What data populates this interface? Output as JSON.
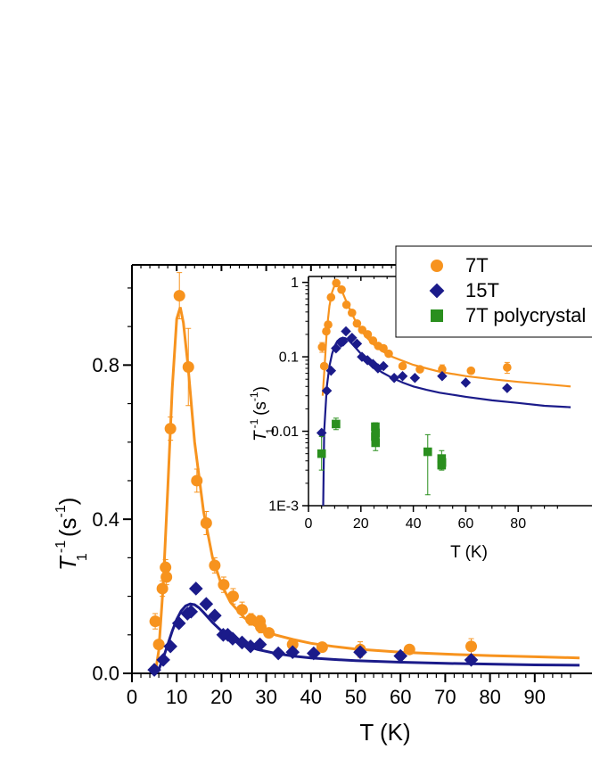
{
  "chart_data": [
    {
      "type": "scatter",
      "title": "",
      "xlabel": "T (K)",
      "ylabel": {
        "main": "T",
        "sub": "1",
        "sup": "-1",
        "unit": "(s",
        "unit_sup": "-1",
        "unit_close": ")"
      },
      "xlim": [
        0,
        100
      ],
      "ylim": [
        0,
        1.06
      ],
      "xticks": [
        0,
        10,
        20,
        30,
        40,
        50,
        60,
        70,
        80,
        90
      ],
      "xtick_labels": [
        "0",
        "10",
        "20",
        "30",
        "40",
        "50",
        "60",
        "70",
        "80",
        "90"
      ],
      "yticks": [
        0,
        0.4,
        0.8
      ],
      "ytick_labels": [
        "0.0",
        "0.4",
        "0.8"
      ],
      "grid": false,
      "colors": {
        "7T": "#f7931e",
        "15T": "#1b1b8a",
        "poly": "#2a8f1e"
      },
      "series": [
        {
          "name": "7T",
          "marker": "circle",
          "points": [
            {
              "x": 5.2,
              "y": 0.135,
              "err": 0.02
            },
            {
              "x": 6.0,
              "y": 0.075,
              "err": 0.01
            },
            {
              "x": 6.8,
              "y": 0.22,
              "err": 0.02
            },
            {
              "x": 7.5,
              "y": 0.275,
              "err": 0.02
            },
            {
              "x": 7.7,
              "y": 0.25,
              "err": 0.02
            },
            {
              "x": 8.6,
              "y": 0.635,
              "err": 0.03
            },
            {
              "x": 10.6,
              "y": 0.98,
              "err": 0.06
            },
            {
              "x": 12.6,
              "y": 0.795,
              "err": 0.1
            },
            {
              "x": 14.5,
              "y": 0.5,
              "err": 0.03
            },
            {
              "x": 16.6,
              "y": 0.39,
              "err": 0.03
            },
            {
              "x": 18.5,
              "y": 0.28,
              "err": 0.02
            },
            {
              "x": 20.5,
              "y": 0.23,
              "err": 0.02
            },
            {
              "x": 22.6,
              "y": 0.2,
              "err": 0.02
            },
            {
              "x": 24.6,
              "y": 0.165,
              "err": 0.02
            },
            {
              "x": 26.6,
              "y": 0.14,
              "err": 0.015
            },
            {
              "x": 28.6,
              "y": 0.135,
              "err": 0.015
            },
            {
              "x": 28.8,
              "y": 0.12,
              "err": 0.015
            },
            {
              "x": 30.6,
              "y": 0.105,
              "err": 0.01
            },
            {
              "x": 35.9,
              "y": 0.075,
              "err": 0.01
            },
            {
              "x": 42.5,
              "y": 0.068,
              "err": 0.01
            },
            {
              "x": 51.0,
              "y": 0.062,
              "err": 0.02
            },
            {
              "x": 62.0,
              "y": 0.062,
              "err": 0.01
            },
            {
              "x": 75.8,
              "y": 0.07,
              "err": 0.02
            }
          ],
          "fit": [
            [
              5.2,
              0.0
            ],
            [
              6,
              0.06
            ],
            [
              7,
              0.23
            ],
            [
              8,
              0.48
            ],
            [
              9,
              0.74
            ],
            [
              10,
              0.92
            ],
            [
              10.8,
              0.95
            ],
            [
              11.5,
              0.91
            ],
            [
              12.5,
              0.8
            ],
            [
              14,
              0.6
            ],
            [
              16,
              0.42
            ],
            [
              18,
              0.3
            ],
            [
              20,
              0.23
            ],
            [
              22,
              0.185
            ],
            [
              25,
              0.145
            ],
            [
              28,
              0.12
            ],
            [
              32,
              0.1
            ],
            [
              36,
              0.088
            ],
            [
              40,
              0.078
            ],
            [
              45,
              0.07
            ],
            [
              50,
              0.063
            ],
            [
              60,
              0.055
            ],
            [
              70,
              0.05
            ],
            [
              80,
              0.046
            ],
            [
              90,
              0.043
            ],
            [
              100,
              0.04
            ]
          ]
        },
        {
          "name": "15T",
          "marker": "diamond",
          "points": [
            {
              "x": 5.0,
              "y": 0.009
            },
            {
              "x": 7.0,
              "y": 0.035
            },
            {
              "x": 8.6,
              "y": 0.07
            },
            {
              "x": 10.5,
              "y": 0.13
            },
            {
              "x": 12.4,
              "y": 0.155
            },
            {
              "x": 13.2,
              "y": 0.16
            },
            {
              "x": 14.3,
              "y": 0.22
            },
            {
              "x": 16.6,
              "y": 0.18
            },
            {
              "x": 18.5,
              "y": 0.15
            },
            {
              "x": 20.4,
              "y": 0.1
            },
            {
              "x": 21.4,
              "y": 0.1
            },
            {
              "x": 22.5,
              "y": 0.09
            },
            {
              "x": 24.6,
              "y": 0.08
            },
            {
              "x": 26.5,
              "y": 0.07
            },
            {
              "x": 28.6,
              "y": 0.075
            },
            {
              "x": 32.7,
              "y": 0.052
            },
            {
              "x": 35.9,
              "y": 0.055
            },
            {
              "x": 40.6,
              "y": 0.052
            },
            {
              "x": 51.0,
              "y": 0.055
            },
            {
              "x": 60.0,
              "y": 0.045
            },
            {
              "x": 75.8,
              "y": 0.035
            }
          ],
          "fit": [
            [
              5.3,
              0.0
            ],
            [
              6,
              0.01
            ],
            [
              7,
              0.04
            ],
            [
              8,
              0.075
            ],
            [
              9,
              0.11
            ],
            [
              10,
              0.14
            ],
            [
              11,
              0.162
            ],
            [
              12,
              0.175
            ],
            [
              13,
              0.18
            ],
            [
              14,
              0.178
            ],
            [
              15,
              0.17
            ],
            [
              16,
              0.158
            ],
            [
              18,
              0.132
            ],
            [
              20,
              0.11
            ],
            [
              22,
              0.092
            ],
            [
              25,
              0.074
            ],
            [
              28,
              0.062
            ],
            [
              32,
              0.052
            ],
            [
              36,
              0.045
            ],
            [
              40,
              0.04
            ],
            [
              45,
              0.036
            ],
            [
              50,
              0.033
            ],
            [
              60,
              0.029
            ],
            [
              70,
              0.026
            ],
            [
              80,
              0.024
            ],
            [
              90,
              0.022
            ],
            [
              100,
              0.021
            ]
          ]
        }
      ]
    },
    {
      "type": "scatter",
      "title": "",
      "xlabel": "T (K)",
      "ylabel": {
        "main": "T",
        "sub": "1",
        "sup": "-1",
        "unit": "(s",
        "unit_sup": "-1",
        "unit_close": ")"
      },
      "yscale": "log",
      "xlim": [
        0,
        100
      ],
      "ylim": [
        0.001,
        1.2
      ],
      "xticks": [
        0,
        20,
        40,
        60,
        80
      ],
      "xtick_labels": [
        "0",
        "20",
        "40",
        "60",
        "80"
      ],
      "yticks": [
        0.001,
        0.01,
        0.1,
        1
      ],
      "ytick_labels": [
        "1E-3",
        "0.01",
        "0.1",
        "1"
      ],
      "legend": {
        "placement": "top-right",
        "entries": [
          {
            "label": "7T",
            "marker": "circle",
            "color": "#f7931e"
          },
          {
            "label": "15T",
            "marker": "diamond",
            "color": "#1b1b8a"
          },
          {
            "label": "7T polycrystal",
            "marker": "square",
            "color": "#2a8f1e"
          }
        ]
      },
      "series": [
        {
          "name": "7T",
          "marker": "circle",
          "points": [
            {
              "x": 5.2,
              "y": 0.135,
              "err": 0.02
            },
            {
              "x": 6.0,
              "y": 0.075
            },
            {
              "x": 6.8,
              "y": 0.22
            },
            {
              "x": 7.5,
              "y": 0.27
            },
            {
              "x": 8.6,
              "y": 0.63
            },
            {
              "x": 10.6,
              "y": 0.98
            },
            {
              "x": 12.6,
              "y": 0.8
            },
            {
              "x": 14.5,
              "y": 0.5
            },
            {
              "x": 16.6,
              "y": 0.39
            },
            {
              "x": 18.5,
              "y": 0.28
            },
            {
              "x": 20.5,
              "y": 0.23
            },
            {
              "x": 22.6,
              "y": 0.2
            },
            {
              "x": 24.6,
              "y": 0.165
            },
            {
              "x": 26.6,
              "y": 0.14
            },
            {
              "x": 28.6,
              "y": 0.13
            },
            {
              "x": 30.6,
              "y": 0.11
            },
            {
              "x": 35.9,
              "y": 0.075
            },
            {
              "x": 42.5,
              "y": 0.068
            },
            {
              "x": 51.0,
              "y": 0.068,
              "err": 0.01
            },
            {
              "x": 62.0,
              "y": 0.065
            },
            {
              "x": 75.8,
              "y": 0.072,
              "err": 0.012
            }
          ],
          "fit": [
            [
              5.4,
              0.03
            ],
            [
              6,
              0.06
            ],
            [
              7,
              0.23
            ],
            [
              8,
              0.48
            ],
            [
              9,
              0.74
            ],
            [
              10,
              0.92
            ],
            [
              10.8,
              0.95
            ],
            [
              11.5,
              0.91
            ],
            [
              12.5,
              0.8
            ],
            [
              14,
              0.6
            ],
            [
              16,
              0.42
            ],
            [
              18,
              0.3
            ],
            [
              20,
              0.23
            ],
            [
              22,
              0.185
            ],
            [
              25,
              0.145
            ],
            [
              28,
              0.12
            ],
            [
              32,
              0.1
            ],
            [
              36,
              0.088
            ],
            [
              40,
              0.078
            ],
            [
              45,
              0.07
            ],
            [
              50,
              0.063
            ],
            [
              60,
              0.055
            ],
            [
              70,
              0.05
            ],
            [
              80,
              0.046
            ],
            [
              90,
              0.043
            ],
            [
              100,
              0.04
            ]
          ]
        },
        {
          "name": "15T",
          "marker": "diamond",
          "points": [
            {
              "x": 5.0,
              "y": 0.0095
            },
            {
              "x": 7.0,
              "y": 0.035
            },
            {
              "x": 8.6,
              "y": 0.065
            },
            {
              "x": 10.5,
              "y": 0.13
            },
            {
              "x": 12.4,
              "y": 0.155
            },
            {
              "x": 13.2,
              "y": 0.16
            },
            {
              "x": 14.3,
              "y": 0.22
            },
            {
              "x": 16.6,
              "y": 0.18
            },
            {
              "x": 18.5,
              "y": 0.15
            },
            {
              "x": 20.4,
              "y": 0.1
            },
            {
              "x": 22.5,
              "y": 0.09
            },
            {
              "x": 24.6,
              "y": 0.08
            },
            {
              "x": 26.5,
              "y": 0.07
            },
            {
              "x": 28.6,
              "y": 0.075
            },
            {
              "x": 32.7,
              "y": 0.052
            },
            {
              "x": 35.9,
              "y": 0.055
            },
            {
              "x": 40.6,
              "y": 0.052
            },
            {
              "x": 51.0,
              "y": 0.055
            },
            {
              "x": 60.0,
              "y": 0.045
            },
            {
              "x": 75.8,
              "y": 0.038
            }
          ],
          "fit": [
            [
              5.6,
              0.001
            ],
            [
              6,
              0.01
            ],
            [
              7,
              0.04
            ],
            [
              8,
              0.075
            ],
            [
              9,
              0.11
            ],
            [
              10,
              0.14
            ],
            [
              11,
              0.162
            ],
            [
              12,
              0.175
            ],
            [
              13,
              0.18
            ],
            [
              14,
              0.178
            ],
            [
              15,
              0.17
            ],
            [
              16,
              0.158
            ],
            [
              18,
              0.132
            ],
            [
              20,
              0.11
            ],
            [
              22,
              0.092
            ],
            [
              25,
              0.074
            ],
            [
              28,
              0.062
            ],
            [
              32,
              0.052
            ],
            [
              36,
              0.045
            ],
            [
              40,
              0.04
            ],
            [
              45,
              0.036
            ],
            [
              50,
              0.033
            ],
            [
              60,
              0.029
            ],
            [
              70,
              0.026
            ],
            [
              80,
              0.024
            ],
            [
              90,
              0.022
            ],
            [
              100,
              0.021
            ]
          ]
        },
        {
          "name": "7T polycrystal",
          "marker": "square",
          "points": [
            {
              "x": 5.0,
              "y": 0.005,
              "elo": 0.003,
              "ehi": 0.0085
            },
            {
              "x": 10.5,
              "y": 0.0125,
              "elo": 0.0105,
              "ehi": 0.015
            },
            {
              "x": 25.5,
              "y": 0.0115,
              "elo": 0.0095,
              "ehi": 0.013
            },
            {
              "x": 25.6,
              "y": 0.0095,
              "elo": 0.0075,
              "ehi": 0.011
            },
            {
              "x": 25.5,
              "y": 0.0085
            },
            {
              "x": 25.6,
              "y": 0.007,
              "elo": 0.0055,
              "ehi": 0.0085
            },
            {
              "x": 45.5,
              "y": 0.0053,
              "elo": 0.0014,
              "ehi": 0.009
            },
            {
              "x": 50.8,
              "y": 0.0043,
              "elo": 0.003,
              "ehi": 0.0055
            },
            {
              "x": 50.9,
              "y": 0.0038
            },
            {
              "x": 50.8,
              "y": 0.0035
            }
          ]
        }
      ]
    }
  ]
}
